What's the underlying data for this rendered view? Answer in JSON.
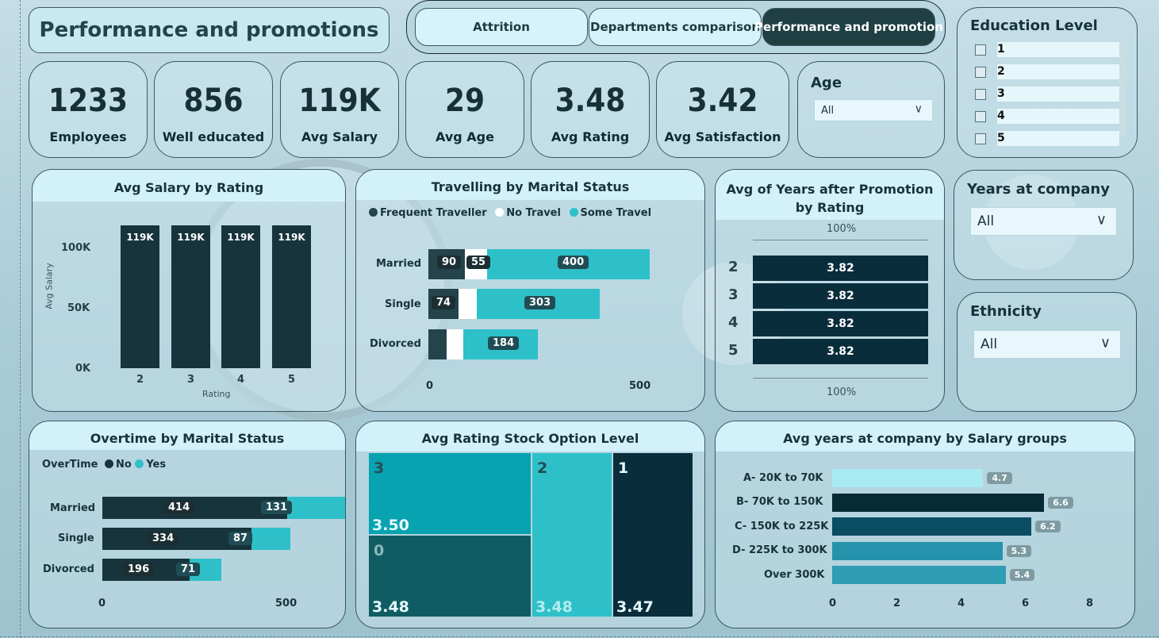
{
  "page_title": "Performance and promotions",
  "nav": {
    "tabs": [
      {
        "label": "Attrition",
        "active": false
      },
      {
        "label": "Departments comparison",
        "active": false
      },
      {
        "label": "Performance and promotion",
        "active": true
      }
    ]
  },
  "kpis": [
    {
      "value": "1233",
      "label": "Employees"
    },
    {
      "value": "856",
      "label": "Well educated"
    },
    {
      "value": "119K",
      "label": "Avg Salary"
    },
    {
      "value": "29",
      "label": "Avg Age"
    },
    {
      "value": "3.48",
      "label": "Avg Rating"
    },
    {
      "value": "3.42",
      "label": "Avg Satisfaction"
    }
  ],
  "filters": {
    "age": {
      "title": "Age",
      "value": "All"
    },
    "education": {
      "title": "Education Level",
      "options": [
        "1",
        "2",
        "3",
        "4",
        "5"
      ]
    },
    "years_at_company": {
      "title": "Years at company",
      "value": "All"
    },
    "ethnicity": {
      "title": "Ethnicity",
      "value": "All"
    }
  },
  "colors": {
    "dark_navy": "#17343c",
    "teal": "#2ec0c8",
    "deep_navy": "#0a2d3c",
    "accent_active": "#1f3f43"
  },
  "salary_by_rating": {
    "title": "Avg Salary by Rating",
    "ylabel": "Avg Salary",
    "xlabel": "Rating",
    "y_ticks": [
      "100K",
      "50K",
      "0K"
    ],
    "categories": [
      "2",
      "3",
      "4",
      "5"
    ],
    "value_labels": [
      "119K",
      "119K",
      "119K",
      "119K"
    ]
  },
  "travel_by_marital": {
    "title": "Travelling by Marital Status",
    "legend": [
      "Frequent Traveller",
      "No Travel",
      "Some Travel"
    ],
    "categories": [
      "Married",
      "Single",
      "Divorced"
    ],
    "labels": {
      "married": [
        "90",
        "55",
        "400"
      ],
      "single": [
        "74",
        "303"
      ],
      "divorced": [
        "184"
      ]
    },
    "x_ticks": [
      "0",
      "500"
    ]
  },
  "promotion_by_rating": {
    "title": "Avg of Years after Promotion by Rating",
    "top_tick": "100%",
    "bottom_tick": "100%",
    "categories": [
      "2",
      "3",
      "4",
      "5"
    ],
    "value_labels": [
      "3.82",
      "3.82",
      "3.82",
      "3.82"
    ]
  },
  "overtime_by_marital": {
    "title": "Overtime by Marital Status",
    "legend_title": "OverTime",
    "legend": [
      "No",
      "Yes"
    ],
    "categories": [
      "Married",
      "Single",
      "Divorced"
    ],
    "no_labels": [
      "414",
      "334",
      "196"
    ],
    "yes_labels": [
      "131",
      "87",
      "71"
    ],
    "x_ticks": [
      "0",
      "500"
    ]
  },
  "stock_option": {
    "title": "Avg Rating Stock Option Level",
    "tiles": [
      {
        "level": "3",
        "value": "3.50"
      },
      {
        "level": "0",
        "value": "3.48"
      },
      {
        "level": "2",
        "value": "3.48"
      },
      {
        "level": "1",
        "value": "3.47"
      }
    ]
  },
  "years_by_salary": {
    "title": "Avg years at company by Salary groups",
    "categories": [
      "A- 20K to 70K",
      "B- 70K to 150K",
      "C- 150K to 225K",
      "D- 225K to 300K",
      "Over 300K"
    ],
    "value_labels": [
      "4.7",
      "6.6",
      "6.2",
      "5.3",
      "5.4"
    ],
    "x_ticks": [
      "0",
      "2",
      "4",
      "6",
      "8"
    ]
  },
  "chart_data": [
    {
      "type": "bar",
      "title": "Avg Salary by Rating",
      "xlabel": "Rating",
      "ylabel": "Avg Salary",
      "categories": [
        "2",
        "3",
        "4",
        "5"
      ],
      "values": [
        119000,
        119000,
        119000,
        119000
      ],
      "ylim": [
        0,
        119000
      ]
    },
    {
      "type": "bar",
      "title": "Travelling by Marital Status",
      "categories": [
        "Married",
        "Single",
        "Divorced"
      ],
      "series": [
        {
          "name": "Frequent Traveller",
          "values": [
            90,
            74,
            45
          ]
        },
        {
          "name": "No Travel",
          "values": [
            55,
            45,
            40
          ]
        },
        {
          "name": "Some Travel",
          "values": [
            400,
            303,
            184
          ]
        }
      ],
      "xlim": [
        0,
        500
      ]
    },
    {
      "type": "bar",
      "title": "Avg of Years after Promotion by Rating",
      "categories": [
        "2",
        "3",
        "4",
        "5"
      ],
      "values": [
        3.82,
        3.82,
        3.82,
        3.82
      ]
    },
    {
      "type": "bar",
      "title": "Overtime by Marital Status",
      "categories": [
        "Married",
        "Single",
        "Divorced"
      ],
      "series": [
        {
          "name": "No",
          "values": [
            414,
            334,
            196
          ]
        },
        {
          "name": "Yes",
          "values": [
            131,
            87,
            71
          ]
        }
      ],
      "xlim": [
        0,
        500
      ]
    },
    {
      "type": "heatmap",
      "title": "Avg Rating Stock Option Level",
      "categories": [
        "3",
        "0",
        "2",
        "1"
      ],
      "values": [
        3.5,
        3.48,
        3.48,
        3.47
      ]
    },
    {
      "type": "bar",
      "title": "Avg years at company by Salary groups",
      "categories": [
        "A- 20K to 70K",
        "B- 70K to 150K",
        "C- 150K to 225K",
        "D- 225K to 300K",
        "Over 300K"
      ],
      "values": [
        4.7,
        6.6,
        6.2,
        5.3,
        5.4
      ],
      "xlim": [
        0,
        8
      ]
    }
  ]
}
